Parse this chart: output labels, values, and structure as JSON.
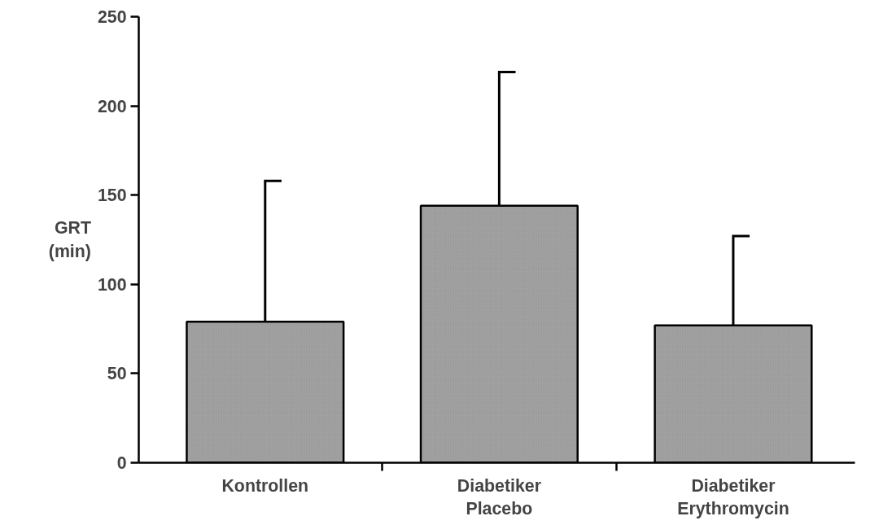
{
  "chart_data": {
    "type": "bar",
    "ylabel": "GRT\n(min)",
    "categories": [
      "Kontrollen",
      "Diabetiker\nPlacebo",
      "Diabetiker\nErythromycin"
    ],
    "values": [
      79,
      144,
      77
    ],
    "color": "#a6a6a6",
    "errors": [
      [
        79,
        158
      ],
      [
        144,
        219
      ],
      [
        77,
        127
      ]
    ],
    "ylim": [
      0,
      250
    ],
    "yticks": [
      0,
      50,
      100,
      150,
      200,
      250
    ],
    "grid": false
  }
}
